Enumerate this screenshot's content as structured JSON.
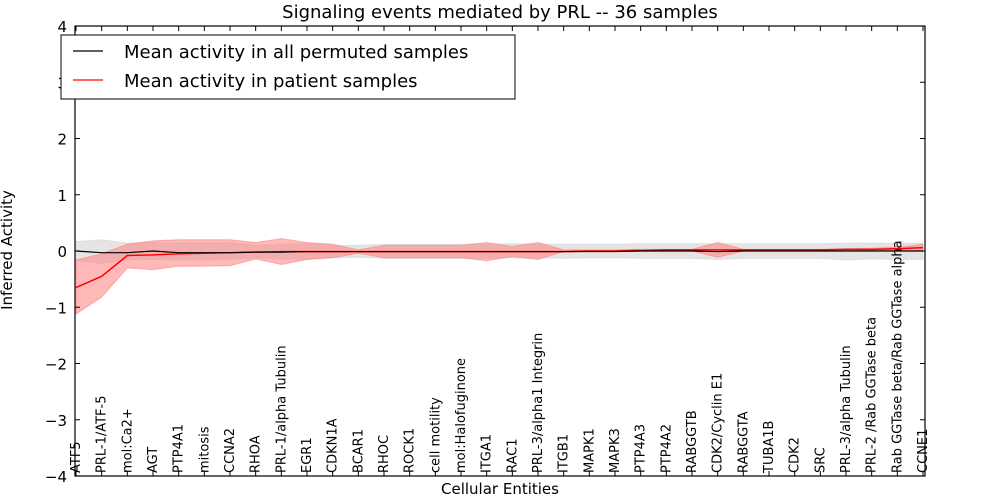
{
  "chart_data": {
    "type": "line",
    "title": "Signaling events mediated by PRL -- 36 samples",
    "xlabel": "Cellular Entities",
    "ylabel": "Inferred Activity",
    "ylim": [
      -4,
      4
    ],
    "yticks": [
      -4,
      -3,
      -2,
      -1,
      0,
      1,
      2,
      3,
      4
    ],
    "ytick_labels": [
      "−4",
      "−3",
      "−2",
      "−1",
      "0",
      "1",
      "2",
      "3",
      "4"
    ],
    "grid": false,
    "legend_position": "top-left",
    "categories": [
      "ATF5",
      "PRL-1/ATF-5",
      "mol:Ca2+",
      "AGT",
      "PTP4A1",
      "mitosis",
      "CCNA2",
      "RHOA",
      "PRL-1/alpha Tubulin",
      "EGR1",
      "CDKN1A",
      "BCAR1",
      "RHOC",
      "ROCK1",
      "cell motility",
      "mol:Halofuginone",
      "ITGA1",
      "RAC1",
      "PRL-3/alpha1 Integrin",
      "ITGB1",
      "MAPK1",
      "MAPK3",
      "PTP4A3",
      "PTP4A2",
      "RABGGTB",
      "CDK2/Cyclin E1",
      "RABGGTA",
      "TUBA1B",
      "CDK2",
      "SRC",
      "PRL-3/alpha Tubulin",
      "PRL-2 /Rab GGTase beta",
      "Rab GGTase beta/Rab GGTase alpha",
      "CCNE1"
    ],
    "series": [
      {
        "name": "Mean activity in all permuted samples",
        "color": "#000000",
        "band_color": "#d3d3d3",
        "values": [
          0.0,
          -0.03,
          -0.03,
          0.0,
          -0.03,
          -0.03,
          -0.03,
          -0.02,
          -0.02,
          -0.01,
          -0.01,
          -0.01,
          -0.01,
          -0.01,
          -0.01,
          -0.01,
          -0.01,
          -0.01,
          -0.01,
          -0.01,
          -0.01,
          -0.01,
          0.0,
          0.0,
          0.0,
          -0.01,
          0.0,
          0.0,
          0.0,
          0.0,
          0.0,
          0.0,
          0.0,
          0.0
        ],
        "upper": [
          0.17,
          0.2,
          0.14,
          0.15,
          0.14,
          0.14,
          0.15,
          0.1,
          0.12,
          0.13,
          0.1,
          0.1,
          0.12,
          0.12,
          0.12,
          0.12,
          0.12,
          0.13,
          0.12,
          0.12,
          0.12,
          0.12,
          0.13,
          0.13,
          0.13,
          0.13,
          0.13,
          0.13,
          0.13,
          0.13,
          0.14,
          0.14,
          0.14,
          0.14
        ],
        "lower": [
          -0.17,
          -0.22,
          -0.16,
          -0.15,
          -0.16,
          -0.16,
          -0.15,
          -0.12,
          -0.14,
          -0.15,
          -0.12,
          -0.11,
          -0.13,
          -0.13,
          -0.13,
          -0.13,
          -0.13,
          -0.12,
          -0.12,
          -0.13,
          -0.12,
          -0.12,
          -0.13,
          -0.13,
          -0.13,
          -0.15,
          -0.13,
          -0.13,
          -0.13,
          -0.13,
          -0.16,
          -0.14,
          -0.15,
          -0.15
        ]
      },
      {
        "name": "Mean activity in patient samples",
        "color": "#ff0000",
        "band_color": "#ff8080",
        "values": [
          -0.65,
          -0.45,
          -0.08,
          -0.07,
          -0.05,
          -0.04,
          -0.03,
          -0.02,
          -0.01,
          -0.01,
          -0.01,
          -0.01,
          -0.01,
          -0.01,
          -0.01,
          -0.01,
          -0.01,
          -0.01,
          -0.01,
          -0.01,
          0.0,
          0.0,
          0.01,
          0.02,
          0.02,
          0.02,
          0.02,
          0.02,
          0.02,
          0.02,
          0.03,
          0.03,
          0.04,
          0.06
        ],
        "upper": [
          -0.16,
          -0.05,
          0.12,
          0.18,
          0.2,
          0.2,
          0.2,
          0.15,
          0.22,
          0.15,
          0.12,
          0.02,
          0.1,
          0.1,
          0.1,
          0.1,
          0.15,
          0.08,
          0.15,
          0.02,
          0.02,
          0.02,
          0.03,
          0.03,
          0.03,
          0.15,
          0.03,
          0.03,
          0.03,
          0.03,
          0.04,
          0.05,
          0.07,
          0.12
        ],
        "lower": [
          -1.12,
          -0.82,
          -0.3,
          -0.33,
          -0.27,
          -0.27,
          -0.26,
          -0.14,
          -0.24,
          -0.15,
          -0.12,
          -0.04,
          -0.12,
          -0.12,
          -0.12,
          -0.12,
          -0.17,
          -0.1,
          -0.15,
          -0.01,
          -0.01,
          -0.01,
          0.0,
          0.0,
          0.0,
          -0.11,
          0.0,
          0.0,
          0.0,
          0.0,
          0.01,
          0.01,
          0.01,
          0.01
        ]
      }
    ]
  }
}
